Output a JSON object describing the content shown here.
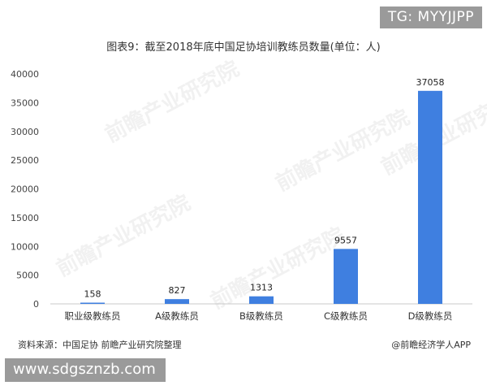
{
  "badges": {
    "tg": "TG: MYYJJPP",
    "url": "www.sdgsznzb.com"
  },
  "footer": {
    "source": "资料来源：中国足协 前瞻产业研究院整理",
    "credit": "@前瞻经济学人APP"
  },
  "watermark": {
    "text": "前瞻产业研究院"
  },
  "colors": {
    "bar": "#3f7fe0",
    "axis": "#c8c8c8"
  },
  "chart_data": {
    "type": "bar",
    "title": "图表9：截至2018年底中国足协培训教练员数量(单位：人)",
    "categories": [
      "职业级教练员",
      "A级教练员",
      "B级教练员",
      "C级教练员",
      "D级教练员"
    ],
    "values": [
      158,
      827,
      1313,
      9557,
      37058
    ],
    "value_labels": [
      "158",
      "827",
      "1313",
      "9557",
      "37058"
    ],
    "ylim": [
      0,
      40000
    ],
    "yticks": [
      0,
      5000,
      10000,
      15000,
      20000,
      25000,
      30000,
      35000,
      40000
    ],
    "ytick_labels": [
      "0",
      "5000",
      "10000",
      "15000",
      "20000",
      "25000",
      "30000",
      "35000",
      "40000"
    ],
    "xlabel": "",
    "ylabel": "",
    "grid": false,
    "legend": "none"
  }
}
